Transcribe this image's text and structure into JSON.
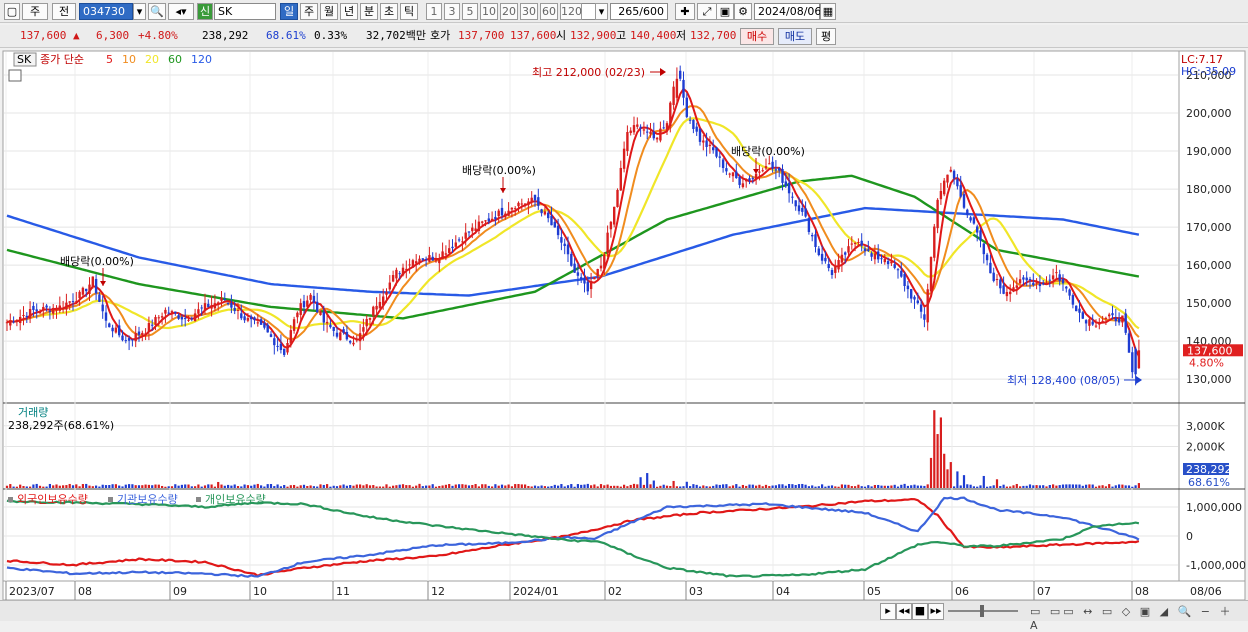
{
  "toolbar": {
    "type1": "주",
    "type2": "전",
    "code": "034730",
    "sin": "신",
    "name": "SK",
    "periods": [
      "일",
      "주",
      "월",
      "년",
      "분",
      "초",
      "틱"
    ],
    "minutes": [
      "1",
      "3",
      "5",
      "10",
      "20",
      "30",
      "60",
      "120"
    ],
    "count": "265",
    "count_total": "/600",
    "date": "2024/08/06"
  },
  "quote": {
    "price": "137,600",
    "arrow": "▲",
    "change": "6,300",
    "change_pct": "+4.80%",
    "volume": "238,292",
    "vol_ratio": "68.61%",
    "turnover_pct": "0.33%",
    "amount": "32,702백만",
    "ask_label": "호가",
    "ask": "137,700",
    "bid": "137,600",
    "open_label": "시",
    "open": "132,900",
    "high_label": "고",
    "high": "140,400",
    "low_label": "저",
    "low": "132,700",
    "buy_label": "매수",
    "sell_label": "매도",
    "eval_label": "평"
  },
  "colors": {
    "up": "#d81e1e",
    "down": "#1e3cd2",
    "ma5": "#e01818",
    "ma10": "#f08c1e",
    "ma20": "#f0e628",
    "ma60": "#1e961e",
    "ma120": "#285ae6",
    "foreign": "#e01818",
    "inst": "#3c64dc",
    "indiv": "#28965a"
  },
  "chart_data": [
    {
      "type": "candlestick",
      "symbol": "SK",
      "legend": {
        "prefix": "종가 단순",
        "periods": [
          "5",
          "10",
          "20",
          "60",
          "120"
        ]
      },
      "lc_label": "LC:7.17",
      "hc_label": "HC:-35.09",
      "y_ticks": [
        "130,000",
        "140,000",
        "150,000",
        "160,000",
        "170,000",
        "180,000",
        "190,000",
        "200,000",
        "210,000"
      ],
      "ylim": [
        124000,
        215000
      ],
      "current_price_label": "137,600",
      "current_pct_label": "4.80%",
      "high_annotation": "최고 212,000 (02/23)",
      "low_annotation": "최저 128,400 (08/05)",
      "events": [
        "배당락(0.00%)",
        "배당락(0.00%)",
        "배당락(0.00%)"
      ],
      "x_labels": [
        "2023/07",
        "08",
        "09",
        "10",
        "11",
        "12",
        "2024/01",
        "02",
        "03",
        "04",
        "05",
        "06",
        "07",
        "08",
        "08/06"
      ],
      "anchors_close": [
        [
          0,
          145000
        ],
        [
          8,
          148000
        ],
        [
          16,
          149000
        ],
        [
          22,
          152000
        ],
        [
          26,
          156000
        ],
        [
          30,
          145000
        ],
        [
          36,
          140000
        ],
        [
          42,
          143000
        ],
        [
          48,
          148000
        ],
        [
          54,
          146000
        ],
        [
          60,
          149000
        ],
        [
          66,
          151000
        ],
        [
          72,
          146000
        ],
        [
          78,
          143000
        ],
        [
          84,
          137000
        ],
        [
          88,
          148000
        ],
        [
          92,
          152000
        ],
        [
          96,
          145000
        ],
        [
          100,
          142000
        ],
        [
          106,
          140000
        ],
        [
          112,
          150000
        ],
        [
          118,
          158000
        ],
        [
          124,
          162000
        ],
        [
          130,
          162000
        ],
        [
          136,
          166000
        ],
        [
          142,
          170000
        ],
        [
          148,
          173000
        ],
        [
          154,
          176000
        ],
        [
          160,
          177000
        ],
        [
          164,
          172000
        ],
        [
          168,
          166000
        ],
        [
          172,
          158000
        ],
        [
          176,
          153000
        ],
        [
          180,
          160000
        ],
        [
          184,
          175000
        ],
        [
          188,
          195000
        ],
        [
          192,
          197000
        ],
        [
          196,
          193000
        ],
        [
          200,
          198000
        ],
        [
          203,
          212000
        ],
        [
          206,
          200000
        ],
        [
          210,
          193000
        ],
        [
          214,
          190000
        ],
        [
          218,
          185000
        ],
        [
          222,
          182000
        ],
        [
          226,
          183000
        ],
        [
          230,
          187000
        ],
        [
          234,
          184000
        ],
        [
          238,
          178000
        ],
        [
          242,
          172000
        ],
        [
          246,
          163000
        ],
        [
          250,
          158000
        ],
        [
          254,
          163000
        ],
        [
          258,
          167000
        ],
        [
          262,
          162000
        ],
        [
          266,
          162000
        ],
        [
          270,
          158000
        ],
        [
          274,
          152000
        ],
        [
          278,
          146000
        ],
        [
          282,
          178000
        ],
        [
          286,
          185000
        ],
        [
          290,
          176000
        ],
        [
          294,
          168000
        ],
        [
          298,
          158000
        ],
        [
          302,
          153000
        ],
        [
          306,
          155000
        ],
        [
          310,
          156000
        ],
        [
          314,
          155000
        ],
        [
          318,
          158000
        ],
        [
          322,
          152000
        ],
        [
          326,
          146000
        ],
        [
          330,
          145000
        ],
        [
          334,
          146000
        ],
        [
          338,
          146000
        ],
        [
          341,
          131300
        ],
        [
          343,
          137600
        ]
      ],
      "anchors_ma60": [
        [
          0,
          164000
        ],
        [
          40,
          155000
        ],
        [
          80,
          149000
        ],
        [
          120,
          146000
        ],
        [
          160,
          153000
        ],
        [
          200,
          172000
        ],
        [
          240,
          182000
        ],
        [
          256,
          183500
        ],
        [
          275,
          178000
        ],
        [
          300,
          164000
        ],
        [
          343,
          157000
        ]
      ],
      "anchors_ma120": [
        [
          0,
          173000
        ],
        [
          40,
          162000
        ],
        [
          80,
          155000
        ],
        [
          110,
          153000
        ],
        [
          140,
          152000
        ],
        [
          180,
          157000
        ],
        [
          220,
          168000
        ],
        [
          260,
          175000
        ],
        [
          280,
          174000
        ],
        [
          320,
          172000
        ],
        [
          343,
          168000
        ]
      ]
    },
    {
      "type": "bar",
      "title": "거래량",
      "current_label": "238,292주(68.61%)",
      "y_ticks": [
        "2,000K",
        "3,000K"
      ],
      "ylim": [
        0,
        4000
      ],
      "current_value_label": "238,292",
      "current_pct_label": "68.61%",
      "spikes": [
        [
          64,
          290
        ],
        [
          192,
          520
        ],
        [
          194,
          720
        ],
        [
          196,
          360
        ],
        [
          202,
          340
        ],
        [
          206,
          300
        ],
        [
          280,
          1450
        ],
        [
          281,
          3750
        ],
        [
          282,
          2600
        ],
        [
          283,
          3400
        ],
        [
          284,
          1650
        ],
        [
          285,
          900
        ],
        [
          286,
          1250
        ],
        [
          288,
          800
        ],
        [
          290,
          620
        ],
        [
          296,
          580
        ],
        [
          300,
          420
        ]
      ]
    },
    {
      "type": "line",
      "legend": [
        "외국인보유수량",
        "기관보유수량",
        "개인보유수량"
      ],
      "y_ticks": [
        "1,000,000",
        "0",
        "-1,000,000"
      ],
      "ylim": [
        -1450000,
        1550000
      ],
      "series": [
        {
          "name": "외국인보유수량",
          "anchors": [
            [
              0,
              -850000
            ],
            [
              20,
              -1000000
            ],
            [
              40,
              -800000
            ],
            [
              60,
              -900000
            ],
            [
              76,
              -1350000
            ],
            [
              90,
              -1100000
            ],
            [
              110,
              -850000
            ],
            [
              130,
              -700000
            ],
            [
              150,
              -320000
            ],
            [
              170,
              0
            ],
            [
              190,
              550000
            ],
            [
              210,
              800000
            ],
            [
              240,
              1000000
            ],
            [
              260,
              1200000
            ],
            [
              276,
              1250000
            ],
            [
              282,
              700000
            ],
            [
              290,
              -380000
            ],
            [
              300,
              -400000
            ],
            [
              320,
              -300000
            ],
            [
              343,
              -200000
            ]
          ]
        },
        {
          "name": "기관보유수량",
          "anchors": [
            [
              0,
              -1100000
            ],
            [
              20,
              -1300000
            ],
            [
              40,
              -1250000
            ],
            [
              60,
              -1300000
            ],
            [
              76,
              -1400000
            ],
            [
              90,
              -900000
            ],
            [
              110,
              -650000
            ],
            [
              130,
              -320000
            ],
            [
              150,
              -250000
            ],
            [
              170,
              -50000
            ],
            [
              178,
              -100000
            ],
            [
              186,
              300000
            ],
            [
              200,
              1000000
            ],
            [
              230,
              1100000
            ],
            [
              260,
              800000
            ],
            [
              276,
              150000
            ],
            [
              284,
              1300000
            ],
            [
              290,
              1300000
            ],
            [
              300,
              900000
            ],
            [
              320,
              650000
            ],
            [
              343,
              -100000
            ]
          ]
        },
        {
          "name": "개인보유수량",
          "anchors": [
            [
              0,
              1200000
            ],
            [
              20,
              1150000
            ],
            [
              40,
              1100000
            ],
            [
              60,
              1000000
            ],
            [
              76,
              1150000
            ],
            [
              90,
              1100000
            ],
            [
              110,
              650000
            ],
            [
              130,
              350000
            ],
            [
              150,
              100000
            ],
            [
              170,
              -150000
            ],
            [
              180,
              -200000
            ],
            [
              188,
              -600000
            ],
            [
              200,
              -1100000
            ],
            [
              220,
              -1400000
            ],
            [
              240,
              -1350000
            ],
            [
              260,
              -1150000
            ],
            [
              276,
              -300000
            ],
            [
              282,
              -200000
            ],
            [
              290,
              -350000
            ],
            [
              300,
              -350000
            ],
            [
              320,
              -100000
            ],
            [
              330,
              350000
            ],
            [
              343,
              450000
            ]
          ]
        }
      ]
    }
  ]
}
